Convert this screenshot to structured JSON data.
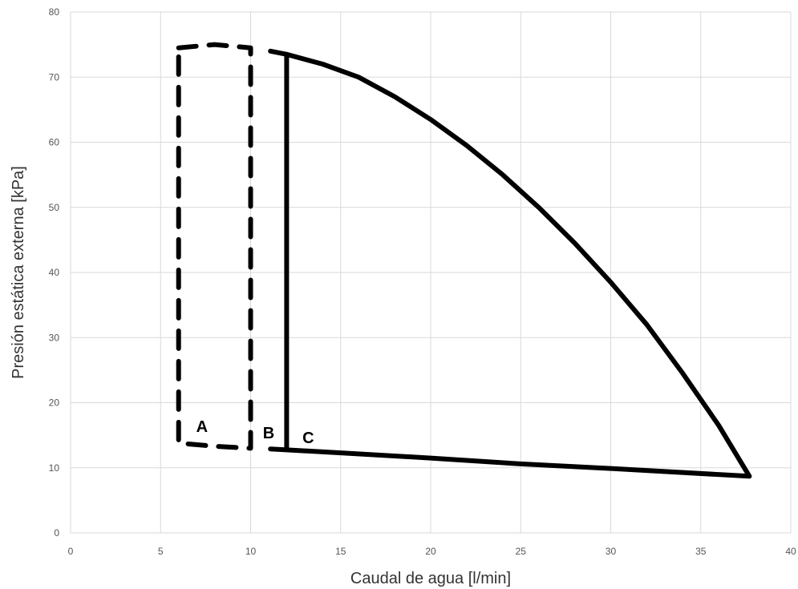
{
  "chart_data": {
    "type": "line",
    "xlabel": "Caudal de agua [l/min]",
    "ylabel": "Presión estática externa [kPa]",
    "xlim": [
      0,
      40
    ],
    "ylim": [
      0,
      80
    ],
    "xticks": [
      0,
      5,
      10,
      15,
      20,
      25,
      30,
      35,
      40
    ],
    "yticks": [
      0,
      10,
      20,
      30,
      40,
      50,
      60,
      70,
      80
    ],
    "grid": true,
    "series": [
      {
        "style": "dashed",
        "points": [
          [
            6,
            74.5
          ],
          [
            8,
            75
          ],
          [
            10,
            74.5
          ],
          [
            10,
            13
          ],
          [
            8,
            13.3
          ],
          [
            6,
            13.8
          ],
          [
            6,
            74.5
          ]
        ]
      },
      {
        "style": "solid",
        "points": [
          [
            11.1,
            74
          ],
          [
            12,
            73.5
          ],
          [
            14,
            72
          ],
          [
            16,
            70
          ],
          [
            18,
            67
          ],
          [
            20,
            63.5
          ],
          [
            22,
            59.5
          ],
          [
            24,
            55
          ],
          [
            26,
            50
          ],
          [
            28,
            44.5
          ],
          [
            30,
            38.5
          ],
          [
            32,
            32
          ],
          [
            34,
            24.5
          ],
          [
            36,
            16.5
          ],
          [
            37.7,
            8.7
          ],
          [
            30,
            9.9
          ],
          [
            25,
            10.6
          ],
          [
            20,
            11.5
          ],
          [
            15,
            12.3
          ],
          [
            11.1,
            12.9
          ]
        ]
      },
      {
        "style": "solid",
        "points": [
          [
            12,
            73.5
          ],
          [
            12,
            13
          ]
        ]
      }
    ],
    "annotations": [
      {
        "text": "A",
        "x": 7.3,
        "y": 15.5
      },
      {
        "text": "B",
        "x": 11,
        "y": 14.5
      },
      {
        "text": "C",
        "x": 13.2,
        "y": 13.8
      }
    ]
  }
}
